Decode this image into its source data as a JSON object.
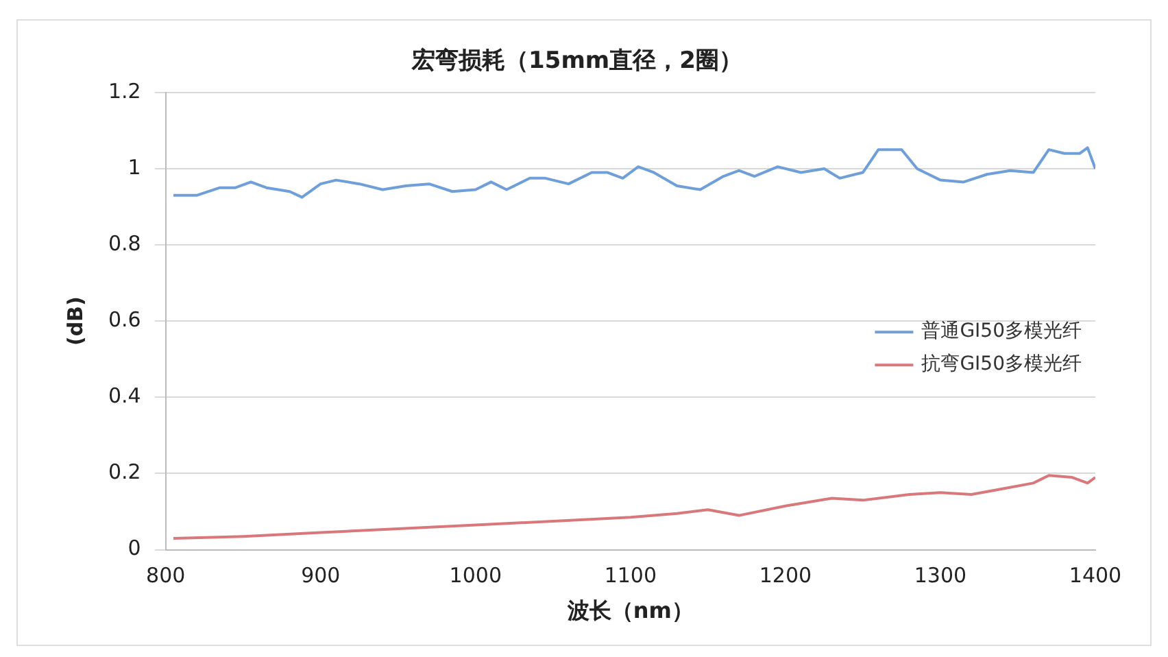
{
  "chart_data": {
    "type": "line",
    "title": "宏弯损耗（15mm直径，2圈）",
    "xlabel": "波长（nm）",
    "ylabel": "(dB)",
    "xlim": [
      800,
      1400
    ],
    "xticks": [
      800,
      900,
      1000,
      1100,
      1200,
      1300,
      1400
    ],
    "ylim": [
      0,
      1.2
    ],
    "yticks": [
      0,
      0.2,
      0.4,
      0.6,
      0.8,
      1,
      1.2
    ],
    "grid": "y",
    "legend": "right",
    "marker": "none",
    "line_style": "solid",
    "series": [
      {
        "name": "普通GI50多模光纤",
        "color": "#6f9fd8",
        "x": [
          805,
          820,
          835,
          845,
          855,
          865,
          880,
          888,
          900,
          910,
          925,
          940,
          955,
          970,
          985,
          1000,
          1010,
          1020,
          1035,
          1045,
          1060,
          1075,
          1085,
          1095,
          1105,
          1115,
          1130,
          1145,
          1160,
          1170,
          1180,
          1195,
          1210,
          1225,
          1235,
          1250,
          1260,
          1275,
          1285,
          1300,
          1315,
          1330,
          1345,
          1360,
          1370,
          1380,
          1390,
          1395,
          1400
        ],
        "values": [
          0.93,
          0.93,
          0.95,
          0.95,
          0.965,
          0.95,
          0.94,
          0.925,
          0.96,
          0.97,
          0.96,
          0.945,
          0.955,
          0.96,
          0.94,
          0.945,
          0.965,
          0.945,
          0.975,
          0.975,
          0.96,
          0.99,
          0.99,
          0.975,
          1.005,
          0.99,
          0.955,
          0.945,
          0.98,
          0.995,
          0.98,
          1.005,
          0.99,
          1.0,
          0.975,
          0.99,
          1.05,
          1.05,
          1.0,
          0.97,
          0.965,
          0.985,
          0.995,
          0.99,
          1.05,
          1.04,
          1.04,
          1.055,
          1.0
        ]
      },
      {
        "name": "抗弯GI50多模光纤",
        "color": "#d9787a",
        "x": [
          805,
          850,
          900,
          950,
          1000,
          1050,
          1100,
          1130,
          1150,
          1170,
          1200,
          1230,
          1250,
          1280,
          1300,
          1320,
          1340,
          1360,
          1370,
          1385,
          1395,
          1400
        ],
        "values": [
          0.03,
          0.035,
          0.045,
          0.055,
          0.065,
          0.075,
          0.085,
          0.095,
          0.105,
          0.09,
          0.115,
          0.135,
          0.13,
          0.145,
          0.15,
          0.145,
          0.16,
          0.175,
          0.195,
          0.19,
          0.175,
          0.19
        ]
      }
    ]
  }
}
